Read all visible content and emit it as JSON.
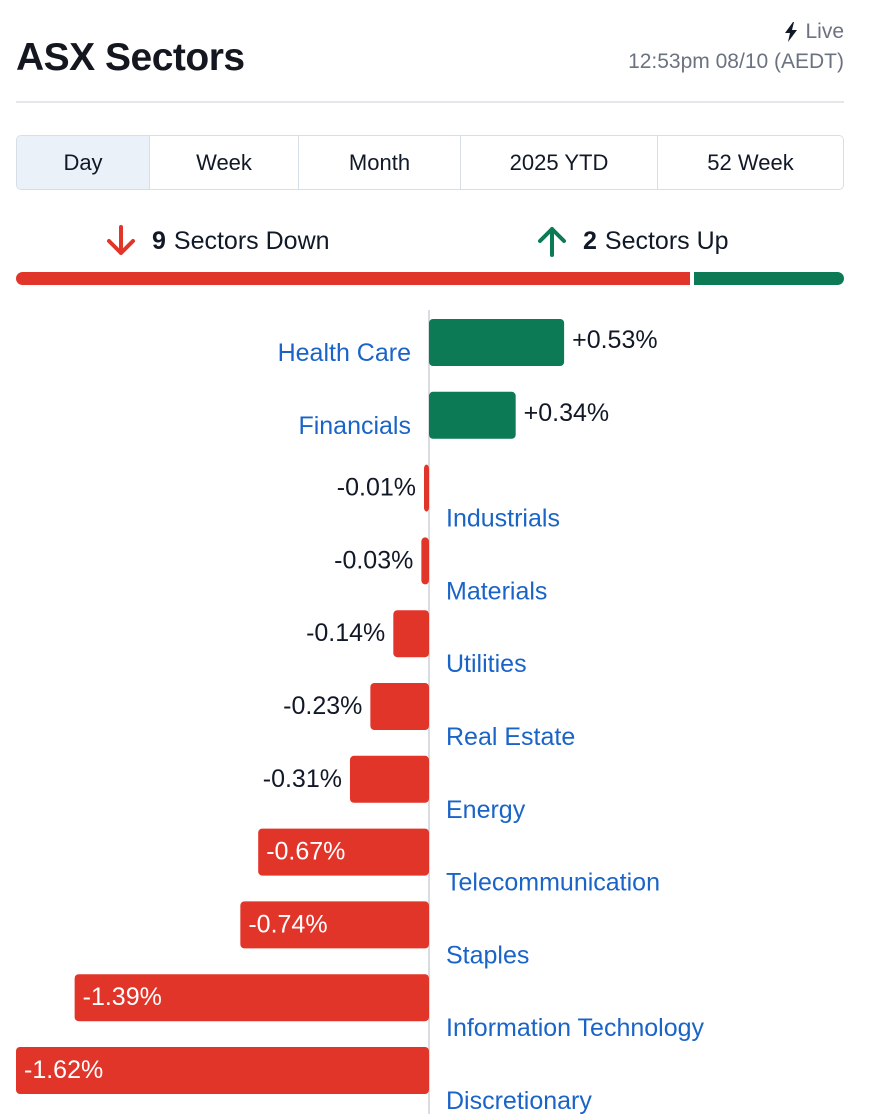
{
  "header": {
    "title": "ASX Sectors",
    "live_label": "Live",
    "timestamp": "12:53pm 08/10 (AEDT)"
  },
  "tabs": [
    {
      "label": "Day",
      "active": true
    },
    {
      "label": "Week",
      "active": false
    },
    {
      "label": "Month",
      "active": false
    },
    {
      "label": "2025 YTD",
      "active": false
    },
    {
      "label": "52 Week",
      "active": false
    }
  ],
  "summary": {
    "down_count": "9",
    "down_label": "Sectors Down",
    "up_count": "2",
    "up_label": "Sectors Up",
    "down_icon": "arrow-down-icon",
    "up_icon": "arrow-up-icon"
  },
  "colors": {
    "negative": "#e2352a",
    "positive": "#0d7a56",
    "link": "#1a64c8",
    "text": "#111827",
    "muted": "#6b7280"
  },
  "chart_data": {
    "type": "bar",
    "orientation": "horizontal",
    "categories": [
      "Health Care",
      "Financials",
      "Industrials",
      "Materials",
      "Utilities",
      "Real Estate",
      "Energy",
      "Telecommunication",
      "Staples",
      "Information Technology",
      "Discretionary"
    ],
    "values": [
      0.53,
      0.34,
      -0.01,
      -0.03,
      -0.14,
      -0.23,
      -0.31,
      -0.67,
      -0.74,
      -1.39,
      -1.62
    ],
    "value_labels": [
      "+0.53%",
      "+0.34%",
      "-0.01%",
      "-0.03%",
      "-0.14%",
      "-0.23%",
      "-0.31%",
      "-0.67%",
      "-0.74%",
      "-1.39%",
      "-1.62%"
    ],
    "unit": "%",
    "xlim": [
      -1.62,
      1.62
    ],
    "grid": false,
    "legend": "none"
  }
}
